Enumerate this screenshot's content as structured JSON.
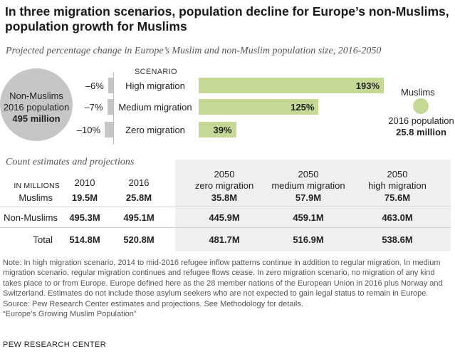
{
  "title": "In three migration scenarios, population decline for Europe’s non-Muslims, population growth for Muslims",
  "subtitle": "Projected percentage change in Europe’s Muslim and non-Muslim population size, 2016-2050",
  "non_muslims": {
    "line1": "Non-Muslims",
    "line2": "2016 population",
    "line3": "495 million"
  },
  "muslims": {
    "label": "Muslims",
    "line1": "2016 population",
    "line2": "25.8 million"
  },
  "chart_data": {
    "type": "bar",
    "title": "Projected percentage change in Europe’s Muslim and non-Muslim population size, 2016-2050",
    "scenario_header": "SCENARIO",
    "categories": [
      "High migration",
      "Medium migration",
      "Zero migration"
    ],
    "series": [
      {
        "name": "Non-Muslims",
        "values": [
          -6,
          -7,
          -10
        ],
        "labels": [
          "–6%",
          "–7%",
          "–10%"
        ]
      },
      {
        "name": "Muslims",
        "values": [
          193,
          125,
          39
        ],
        "labels": [
          "193%",
          "125%",
          "39%"
        ]
      }
    ],
    "colors": {
      "non_muslims": "#c6c6c6",
      "muslims": "#c5d895"
    }
  },
  "table": {
    "title": "Count estimates and projections",
    "units_label": "IN MILLIONS",
    "columns": [
      {
        "line1": "2010",
        "line2": ""
      },
      {
        "line1": "2016",
        "line2": ""
      },
      {
        "line1": "2050",
        "line2": "zero migration"
      },
      {
        "line1": "2050",
        "line2": "medium migration"
      },
      {
        "line1": "2050",
        "line2": "high migration"
      }
    ],
    "rows": [
      {
        "label": "Muslims",
        "values": [
          "19.5M",
          "25.8M",
          "35.8M",
          "57.9M",
          "75.6M"
        ]
      },
      {
        "label": "Non-Muslims",
        "values": [
          "495.3M",
          "495.1M",
          "445.9M",
          "459.1M",
          "463.0M"
        ]
      },
      {
        "label": "Total",
        "values": [
          "514.8M",
          "520.8M",
          "481.7M",
          "516.9M",
          "538.6M"
        ]
      }
    ]
  },
  "notes": [
    "Note: In high migration scenario, 2014 to mid-2016 refugee inflow patterns continue in addition to regular migration. In medium migration scenario, regular migration continues and refugee flows cease. In zero migration scenario, no migration of any kind takes place to or from Europe. Europe defined here as the 28 member nations of the European Union in 2016 plus Norway and Switzerland. Estimates do not include those asylum seekers who are not expected to gain legal status to remain in Europe.",
    "Source: Pew Research Center estimates and projections. See Methodology for details.",
    "“Europe’s Growing Muslim Population”"
  ],
  "organization": "PEW RESEARCH CENTER"
}
